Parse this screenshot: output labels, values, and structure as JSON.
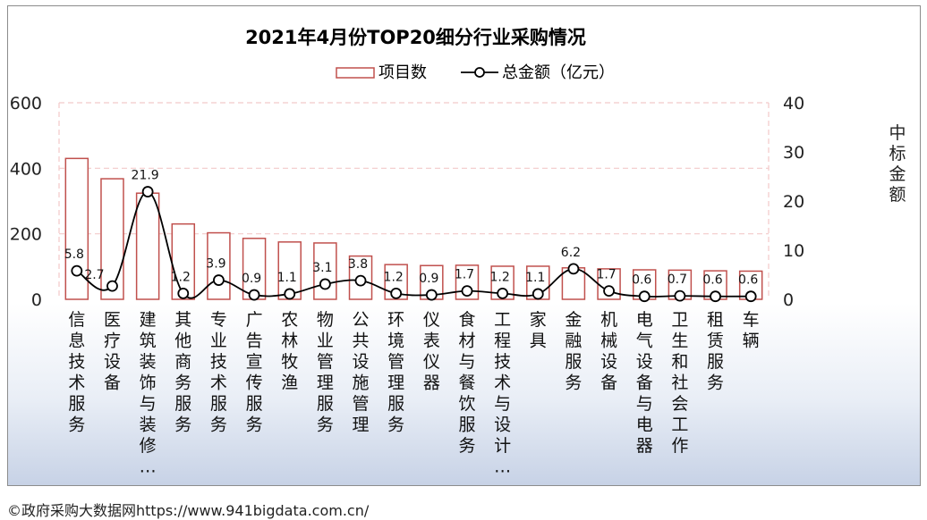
{
  "chart_data": {
    "type": "bar+line",
    "title": "2021年4月份TOP20细分行业采购情况",
    "categories": [
      "信息技术服务",
      "医疗设备",
      "建筑装饰与装修…",
      "其他商务服务",
      "专业技术服务",
      "广告宣传服务",
      "农林牧渔",
      "物业管理服务",
      "公共设施管理",
      "环境管理服务",
      "仪表仪器",
      "食材与餐饮服务",
      "工程技术与设计…",
      "家具",
      "金融服务",
      "机械设备",
      "电气设备与电器",
      "卫生和社会工作",
      "租赁服务",
      "车辆"
    ],
    "series": [
      {
        "name": "项目数",
        "kind": "bar",
        "axis": "left",
        "values": [
          430,
          368,
          324,
          230,
          203,
          186,
          175,
          172,
          132,
          106,
          103,
          104,
          101,
          101,
          96,
          93,
          90,
          89,
          87,
          86
        ]
      },
      {
        "name": "总金额（亿元）",
        "kind": "line",
        "axis": "right",
        "values": [
          5.8,
          2.7,
          21.9,
          1.2,
          3.9,
          0.9,
          1.1,
          3.1,
          3.8,
          1.2,
          0.9,
          1.7,
          1.2,
          1.1,
          6.2,
          1.7,
          0.6,
          0.7,
          0.6,
          0.6
        ],
        "labels": [
          "5.8",
          "2.7",
          "21.9",
          "1.2",
          "3.9",
          "0.9",
          "1.1",
          "3.1",
          "3.8",
          "1.2",
          "0.9",
          "1.7",
          "1.2",
          "1.1",
          "6.2",
          "1.7",
          "0.6",
          "0.7",
          "0.6",
          "0.6"
        ]
      }
    ],
    "y_left": {
      "ticks": [
        "0",
        "200",
        "400",
        "600"
      ],
      "range": [
        0,
        600
      ]
    },
    "y_right": {
      "label": "中标金额",
      "ticks": [
        "0",
        "10",
        "20",
        "30",
        "40"
      ],
      "range": [
        0,
        40
      ]
    },
    "grid": "dashed-horizontal",
    "legend_position": "top-center",
    "colors": {
      "bar_edge": "#c0504d",
      "bar_fill": "#ffffff",
      "line": "#000000",
      "grid": "#f2c9c9"
    }
  },
  "source_text": "©政府采购大数据网https://www.941bigdata.com.cn/"
}
